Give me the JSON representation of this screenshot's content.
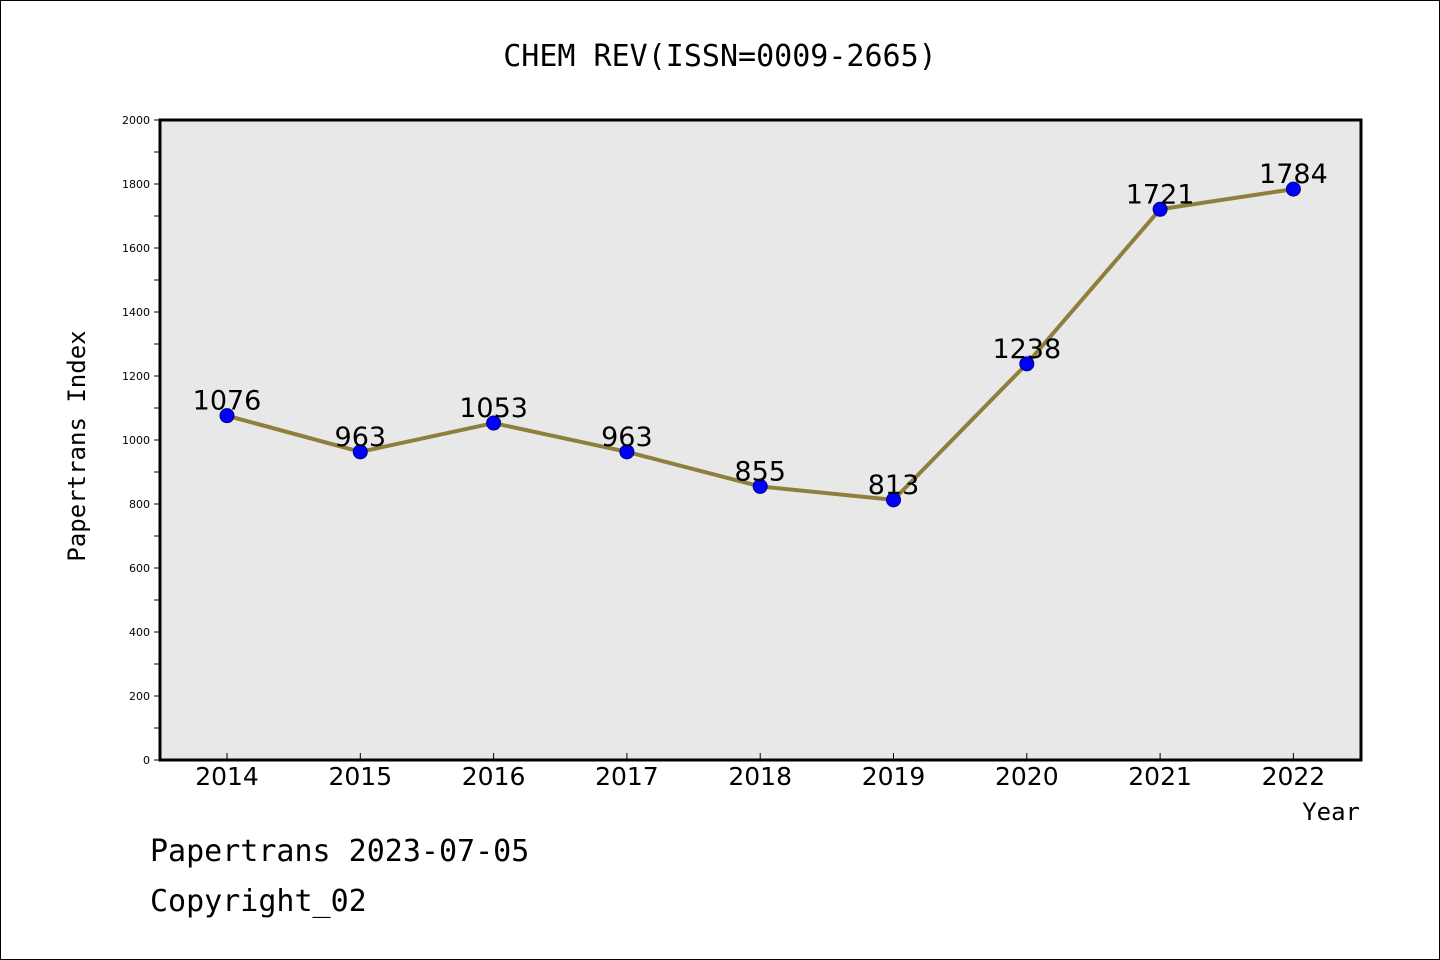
{
  "chart_data": {
    "type": "line",
    "title": "CHEM REV(ISSN=0009-2665)",
    "xlabel": "Year",
    "ylabel": "Papertrans Index",
    "categories": [
      "2014",
      "2015",
      "2016",
      "2017",
      "2018",
      "2019",
      "2020",
      "2021",
      "2022"
    ],
    "values": [
      1076,
      963,
      1053,
      963,
      855,
      813,
      1238,
      1721,
      1784
    ],
    "value_labels": [
      "1076",
      "963",
      "1053",
      "963",
      "855",
      "813",
      "1238",
      "1721",
      "1784"
    ],
    "ylim": [
      0,
      2000
    ],
    "yticks": [
      0,
      200,
      400,
      600,
      800,
      1000,
      1200,
      1400,
      1600,
      1800,
      2000
    ],
    "grid": false,
    "colors": {
      "line": "#8f7f3c",
      "marker": "#0000ff",
      "plot_background": "#e8e8e8"
    }
  },
  "footer": {
    "line1": "Papertrans 2023-07-05",
    "line2": "Copyright_02"
  }
}
